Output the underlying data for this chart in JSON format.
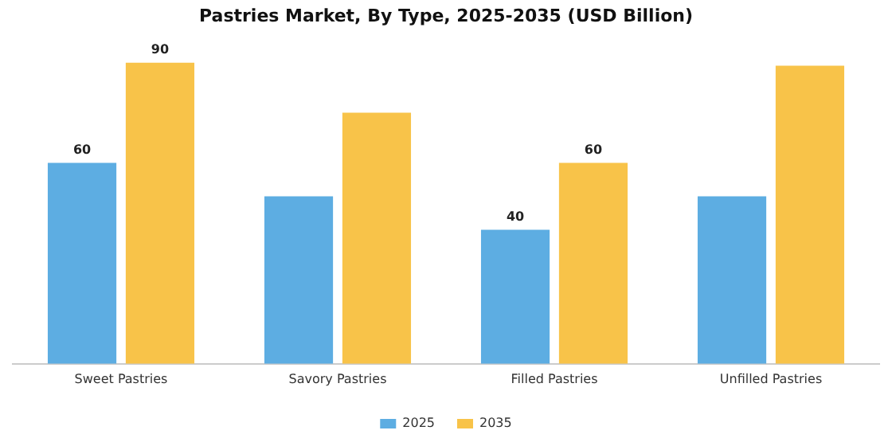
{
  "chart_data": {
    "type": "bar",
    "title": "Pastries Market, By Type, 2025-2035 (USD Billion)",
    "categories": [
      "Sweet Pastries",
      "Savory Pastries",
      "Filled Pastries",
      "Unfilled Pastries"
    ],
    "series": [
      {
        "name": "2025",
        "color": "#5dade2",
        "values": [
          60,
          50,
          40,
          50
        ],
        "value_labels": [
          "60",
          null,
          "40",
          null
        ]
      },
      {
        "name": "2035",
        "color": "#f8c349",
        "values": [
          90,
          75,
          60,
          89
        ],
        "value_labels": [
          "90",
          null,
          "60",
          null
        ]
      }
    ],
    "grid": false,
    "legend": "bottom",
    "tick_labels": "x"
  }
}
